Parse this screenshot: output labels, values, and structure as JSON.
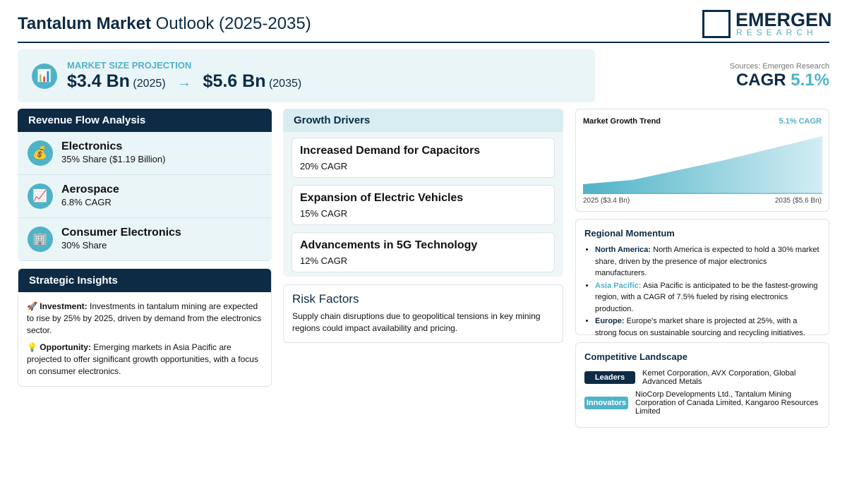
{
  "header": {
    "title_bold": "Tantalum Market",
    "title_rest": "Outlook (2025-2035)",
    "logo_main": "EMERGEN",
    "logo_sub": "RESEARCH"
  },
  "projection": {
    "icon": "📊",
    "label": "MARKET SIZE PROJECTION",
    "start_value": "$3.4 Bn",
    "start_year": "(2025)",
    "arrow": "→",
    "end_value": "$5.6 Bn",
    "end_year": "(2035)"
  },
  "summary": {
    "source": "Sources: Emergen Research",
    "cagr_label": "CAGR",
    "cagr_value": "5.1%"
  },
  "revenue_flow": {
    "title": "Revenue Flow Analysis",
    "items": [
      {
        "icon": "💰",
        "name": "Electronics",
        "detail": "35% Share ($1.19 Billion)"
      },
      {
        "icon": "📈",
        "name": "Aerospace",
        "detail": "6.8% CAGR"
      },
      {
        "icon": "🏢",
        "name": "Consumer Electronics",
        "detail": "30% Share"
      }
    ]
  },
  "strategic_insights": {
    "title": "Strategic Insights",
    "items": [
      {
        "icon": "🚀",
        "label": "Investment:",
        "text": "Investments in tantalum mining are expected to rise by 25% by 2025, driven by demand from the electronics sector."
      },
      {
        "icon": "💡",
        "label": "Opportunity:",
        "text": "Emerging markets in Asia Pacific are projected to offer significant growth opportunities, with a focus on consumer electronics."
      }
    ]
  },
  "growth_drivers": {
    "title": "Growth Drivers",
    "items": [
      {
        "name": "Increased Demand for Capacitors",
        "detail": "20% CAGR"
      },
      {
        "name": "Expansion of Electric Vehicles",
        "detail": "15% CAGR"
      },
      {
        "name": "Advancements in 5G Technology",
        "detail": "12% CAGR"
      }
    ]
  },
  "risk_factors": {
    "title": "Risk Factors",
    "text": "Supply chain disruptions due to geopolitical tensions in key mining regions could impact availability and pricing."
  },
  "growth_trend": {
    "title": "Market Growth Trend",
    "cagr": "5.1% CAGR",
    "start_label": "2025 ($3.4 Bn)",
    "end_label": "2035 ($5.6 Bn)"
  },
  "regional_momentum": {
    "title": "Regional Momentum",
    "items": [
      {
        "region": "North America:",
        "text": "North America is expected to hold a 30% market share, driven by the presence of major electronics manufacturers."
      },
      {
        "region": "Asia Pacific:",
        "text": "Asia Pacific is anticipated to be the fastest-growing region, with a CAGR of 7.5% fueled by rising electronics production."
      },
      {
        "region": "Europe:",
        "text": "Europe's market share is projected at 25%, with a strong focus on sustainable sourcing and recycling initiatives."
      }
    ]
  },
  "competitive_landscape": {
    "title": "Competitive Landscape",
    "groups": [
      {
        "badge": "Leaders",
        "companies": "Kemet Corporation, AVX Corporation, Global Advanced Metals"
      },
      {
        "badge": "Innovators",
        "companies": "NioCorp Developments Ltd., Tantalum Mining Corporation of Canada Limited, Kangaroo Resources Limited"
      }
    ]
  }
}
